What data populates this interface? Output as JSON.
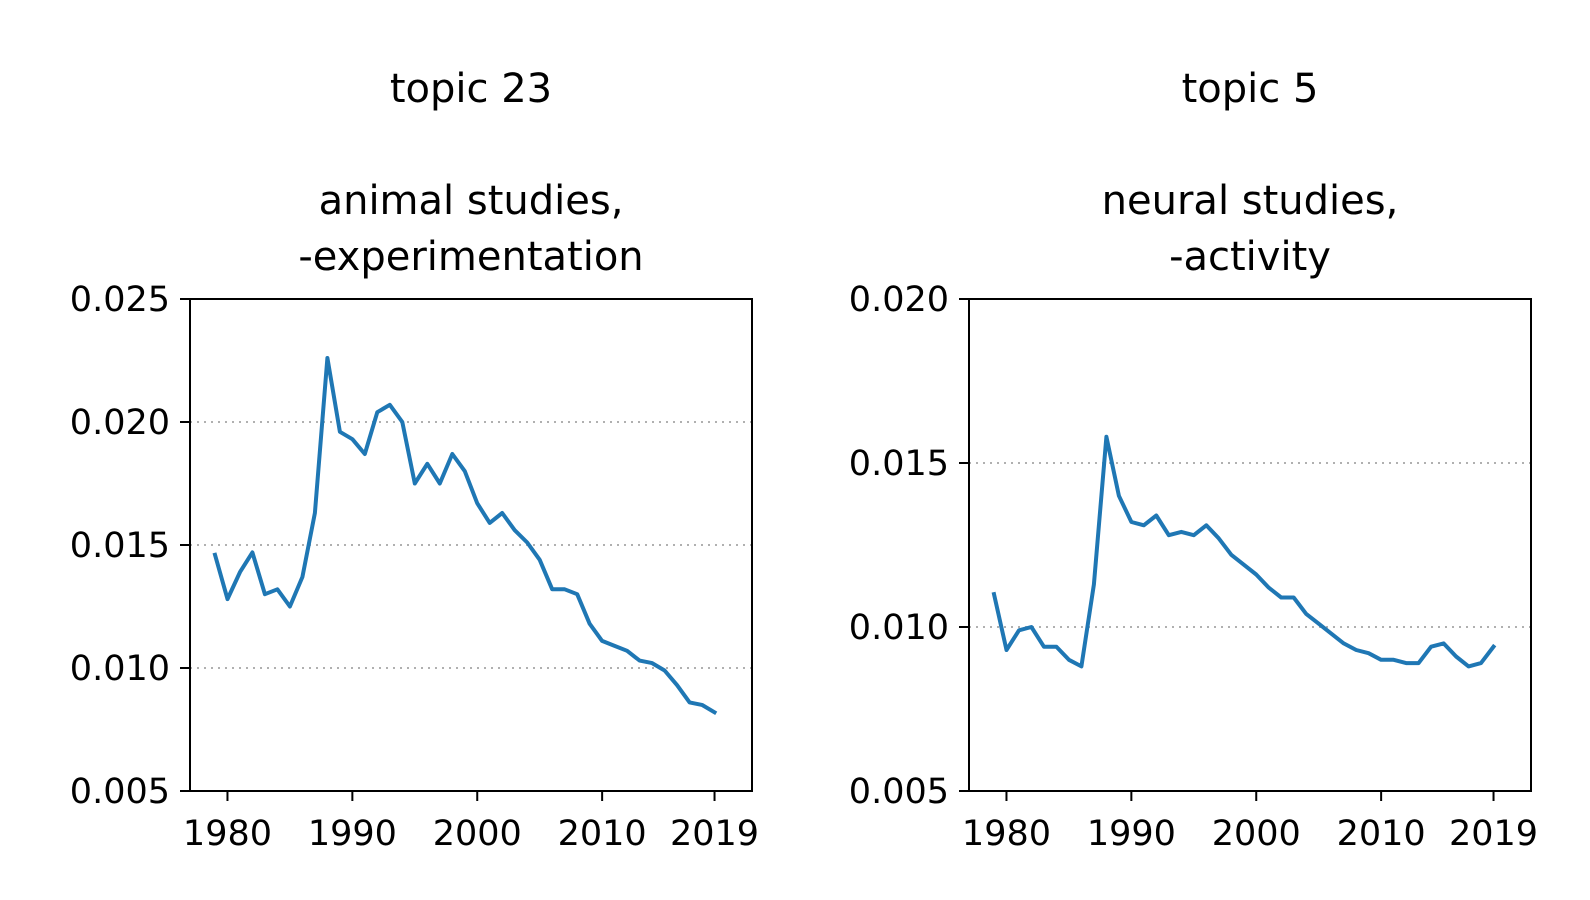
{
  "colors": {
    "line": "#1f77b4",
    "grid": "#b0b0b0",
    "axes": "#000000",
    "background": "#ffffff"
  },
  "chart_data": [
    {
      "type": "line",
      "title": "topic 23",
      "subtitle_lines": [
        "animal studies,",
        "-experimentation"
      ],
      "xlabel": "",
      "ylabel": "",
      "xlim": [
        1977,
        2022
      ],
      "ylim": [
        0.005,
        0.025
      ],
      "xticks": [
        1980,
        1990,
        2000,
        2010,
        2019
      ],
      "xtick_labels": [
        "1980",
        "1990",
        "2000",
        "2010",
        "2019"
      ],
      "yticks": [
        0.005,
        0.01,
        0.015,
        0.02,
        0.025
      ],
      "ytick_labels": [
        "0.005",
        "0.010",
        "0.015",
        "0.020",
        "0.025"
      ],
      "grid": "y-dotted",
      "x": [
        1979,
        1980,
        1981,
        1982,
        1983,
        1984,
        1985,
        1986,
        1987,
        1988,
        1989,
        1990,
        1991,
        1992,
        1993,
        1994,
        1995,
        1996,
        1997,
        1998,
        1999,
        2000,
        2001,
        2002,
        2003,
        2004,
        2005,
        2006,
        2007,
        2008,
        2009,
        2010,
        2011,
        2012,
        2013,
        2014,
        2015,
        2016,
        2017,
        2018,
        2019
      ],
      "series": [
        {
          "values": [
            0.0146,
            0.0128,
            0.0139,
            0.0147,
            0.013,
            0.0132,
            0.0125,
            0.0137,
            0.0163,
            0.0226,
            0.0196,
            0.0193,
            0.0187,
            0.0204,
            0.0207,
            0.02,
            0.0175,
            0.0183,
            0.0175,
            0.0187,
            0.018,
            0.0167,
            0.0159,
            0.0163,
            0.0156,
            0.0151,
            0.0144,
            0.0132,
            0.0132,
            0.013,
            0.0118,
            0.0111,
            0.0109,
            0.0107,
            0.0103,
            0.0102,
            0.0099,
            0.0093,
            0.0086,
            0.0085,
            0.0082
          ]
        }
      ]
    },
    {
      "type": "line",
      "title": "topic 5",
      "subtitle_lines": [
        "neural studies,",
        "-activity"
      ],
      "xlabel": "",
      "ylabel": "",
      "xlim": [
        1977,
        2022
      ],
      "ylim": [
        0.005,
        0.02
      ],
      "xticks": [
        1980,
        1990,
        2000,
        2010,
        2019
      ],
      "xtick_labels": [
        "1980",
        "1990",
        "2000",
        "2010",
        "2019"
      ],
      "yticks": [
        0.005,
        0.01,
        0.015,
        0.02
      ],
      "ytick_labels": [
        "0.005",
        "0.010",
        "0.015",
        "0.020"
      ],
      "grid": "y-dotted",
      "x": [
        1979,
        1980,
        1981,
        1982,
        1983,
        1984,
        1985,
        1986,
        1987,
        1988,
        1989,
        1990,
        1991,
        1992,
        1993,
        1994,
        1995,
        1996,
        1997,
        1998,
        1999,
        2000,
        2001,
        2002,
        2003,
        2004,
        2005,
        2006,
        2007,
        2008,
        2009,
        2010,
        2011,
        2012,
        2013,
        2014,
        2015,
        2016,
        2017,
        2018,
        2019
      ],
      "series": [
        {
          "values": [
            0.011,
            0.0093,
            0.0099,
            0.01,
            0.0094,
            0.0094,
            0.009,
            0.0088,
            0.0113,
            0.0158,
            0.014,
            0.0132,
            0.0131,
            0.0134,
            0.0128,
            0.0129,
            0.0128,
            0.0131,
            0.0127,
            0.0122,
            0.0119,
            0.0116,
            0.0112,
            0.0109,
            0.0109,
            0.0104,
            0.0101,
            0.0098,
            0.0095,
            0.0093,
            0.0092,
            0.009,
            0.009,
            0.0089,
            0.0089,
            0.0094,
            0.0095,
            0.0091,
            0.0088,
            0.0089,
            0.0094
          ]
        }
      ]
    }
  ]
}
